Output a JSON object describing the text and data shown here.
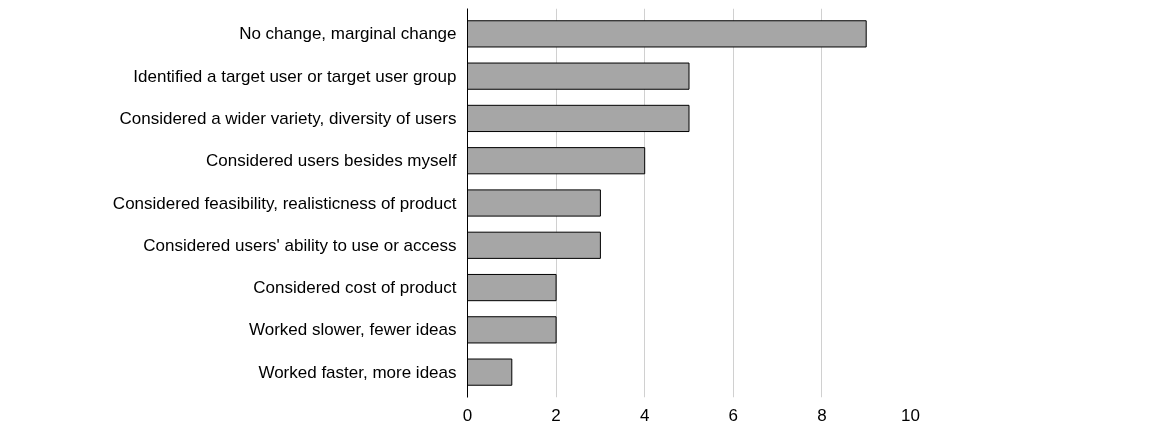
{
  "chart_data": {
    "type": "bar",
    "orientation": "horizontal",
    "categories": [
      "No change, marginal change",
      "Identified a target user or target user group",
      "Considered a wider variety, diversity of users",
      "Considered users besides myself",
      "Considered feasibility, realisticness of product",
      "Considered users' ability to use or access",
      "Considered cost of product",
      "Worked slower, fewer ideas",
      "Worked faster, more ideas"
    ],
    "values": [
      9,
      5,
      5,
      4,
      3,
      3,
      2,
      2,
      1
    ],
    "color": "#a6a6a6",
    "xlim": [
      0,
      10
    ],
    "xticks": [
      0,
      2,
      4,
      6,
      8,
      10
    ],
    "grid": "x"
  }
}
